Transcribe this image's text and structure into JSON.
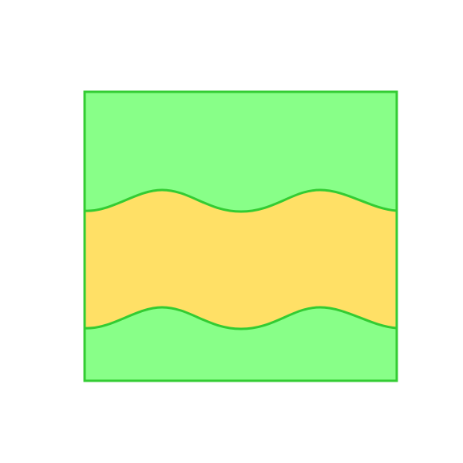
{
  "figure": {
    "description_free": true,
    "colors": {
      "background": "#ffffff",
      "outer_fill": "#88ff88",
      "border": "#33cc33",
      "band_fill": "#ffe066",
      "wave_stroke": "#33cc33"
    }
  }
}
